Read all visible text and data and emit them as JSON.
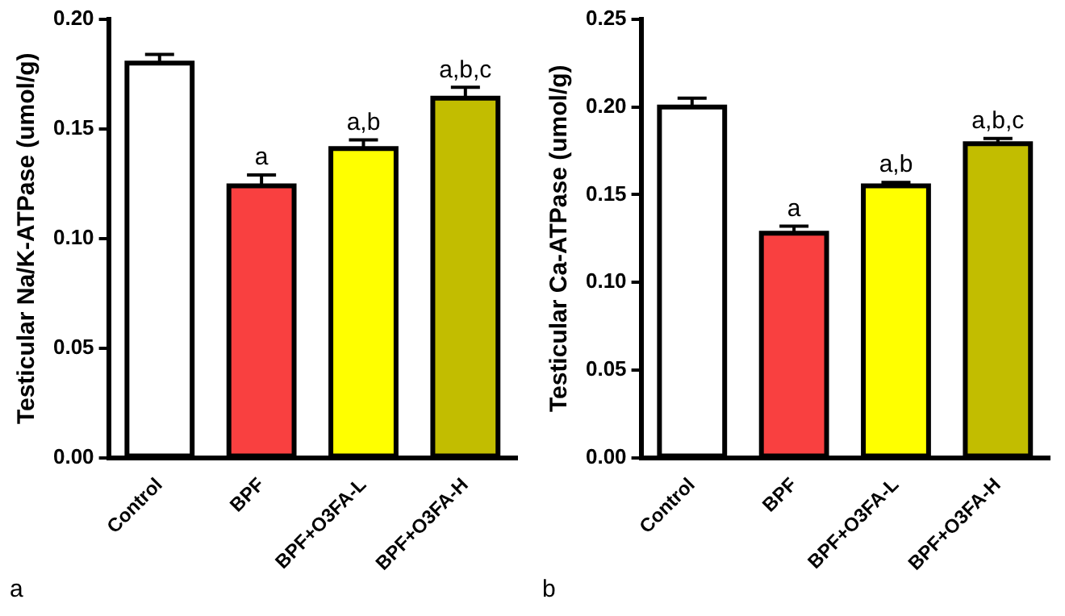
{
  "chart_data": [
    {
      "type": "bar",
      "ylabel": "Testicular Na/K-ATPase (umol/g)",
      "categories": [
        "Control",
        "BPF",
        "BPF+O3FA-L",
        "BPF+O3FA-H"
      ],
      "values": [
        0.18,
        0.124,
        0.141,
        0.164
      ],
      "colors": [
        "#ffffff",
        "#f94040",
        "#ffff00",
        "#c2bd00"
      ],
      "errors": [
        0.004,
        0.005,
        0.004,
        0.005
      ],
      "ylim": [
        0,
        0.2
      ],
      "yticks": [
        {
          "value": 0,
          "label": "0.00"
        },
        {
          "value": 0.05,
          "label": "0.05"
        },
        {
          "value": 0.1,
          "label": "0.10"
        },
        {
          "value": 0.15,
          "label": "0.15"
        },
        {
          "value": 0.2,
          "label": "0.20"
        }
      ],
      "grid": false,
      "legend": false,
      "annotations": [
        {
          "text": "a",
          "x": "BPF",
          "y": 0.129
        },
        {
          "text": "a,b",
          "x": "BPF+O3FA-L",
          "y": 0.145
        },
        {
          "text": "a,b,c",
          "x": "BPF+O3FA-H",
          "y": 0.169
        },
        "a"
      ]
    },
    {
      "type": "bar",
      "ylabel": "Testicular Ca-ATPase (umol/g)",
      "categories": [
        "Control",
        "BPF",
        "BPF+O3FA-L",
        "BPF+O3FA-H"
      ],
      "values": [
        0.2,
        0.128,
        0.155,
        0.179
      ],
      "colors": [
        "#ffffff",
        "#f94040",
        "#ffff00",
        "#c2bd00"
      ],
      "errors": [
        0.005,
        0.004,
        0.002,
        0.003
      ],
      "ylim": [
        0,
        0.25
      ],
      "yticks": [
        {
          "value": 0,
          "label": "0.00"
        },
        {
          "value": 0.05,
          "label": "0.05"
        },
        {
          "value": 0.1,
          "label": "0.10"
        },
        {
          "value": 0.15,
          "label": "0.15"
        },
        {
          "value": 0.2,
          "label": "0.20"
        },
        {
          "value": 0.25,
          "label": "0.25"
        }
      ],
      "grid": false,
      "legend": false,
      "annotations": [
        {
          "text": "a",
          "x": "BPF",
          "y": 0.132
        },
        {
          "text": "a,b",
          "x": "BPF+O3FA-L",
          "y": 0.157
        },
        {
          "text": "a,b,c",
          "x": "BPF+O3FA-H",
          "y": 0.182
        },
        "b"
      ]
    }
  ]
}
